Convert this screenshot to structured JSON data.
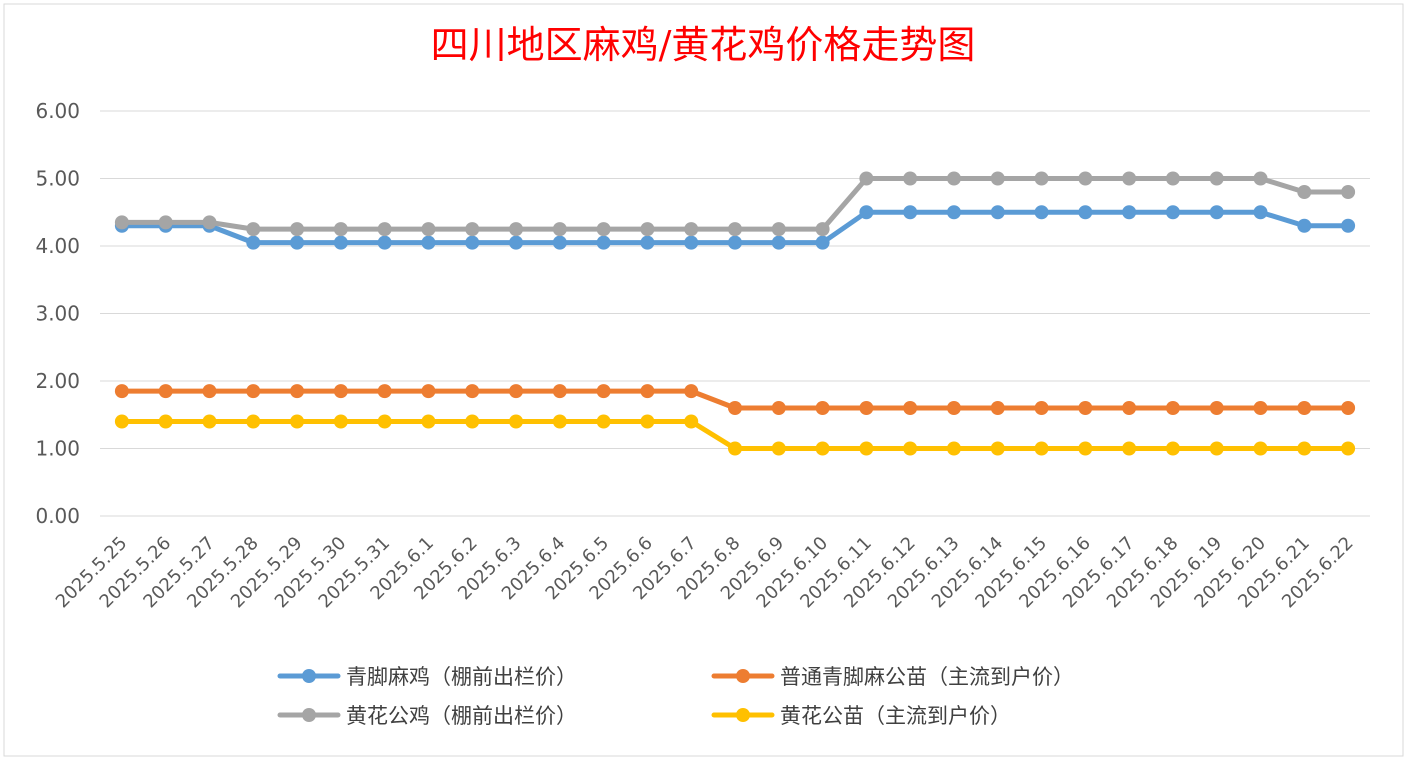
{
  "chart_data": {
    "type": "line",
    "title": "四川地区麻鸡/黄花鸡价格走势图",
    "xlabel": "",
    "ylabel": "",
    "ylim": [
      0,
      6
    ],
    "yticks": [
      "0.00",
      "1.00",
      "2.00",
      "3.00",
      "4.00",
      "5.00",
      "6.00"
    ],
    "grid": true,
    "legend_position": "bottom",
    "categories": [
      "2025.5.25",
      "2025.5.26",
      "2025.5.27",
      "2025.5.28",
      "2025.5.29",
      "2025.5.30",
      "2025.5.31",
      "2025.6.1",
      "2025.6.2",
      "2025.6.3",
      "2025.6.4",
      "2025.6.5",
      "2025.6.6",
      "2025.6.7",
      "2025.6.8",
      "2025.6.9",
      "2025.6.10",
      "2025.6.11",
      "2025.6.12",
      "2025.6.13",
      "2025.6.14",
      "2025.6.15",
      "2025.6.16",
      "2025.6.17",
      "2025.6.18",
      "2025.6.19",
      "2025.6.20",
      "2025.6.21",
      "2025.6.22"
    ],
    "series": [
      {
        "name": "青脚麻鸡（棚前出栏价）",
        "color": "#5b9bd5",
        "values": [
          4.3,
          4.3,
          4.3,
          4.05,
          4.05,
          4.05,
          4.05,
          4.05,
          4.05,
          4.05,
          4.05,
          4.05,
          4.05,
          4.05,
          4.05,
          4.05,
          4.05,
          4.5,
          4.5,
          4.5,
          4.5,
          4.5,
          4.5,
          4.5,
          4.5,
          4.5,
          4.5,
          4.3,
          4.3
        ]
      },
      {
        "name": "普通青脚麻公苗（主流到户价）",
        "color": "#ed7d31",
        "values": [
          1.85,
          1.85,
          1.85,
          1.85,
          1.85,
          1.85,
          1.85,
          1.85,
          1.85,
          1.85,
          1.85,
          1.85,
          1.85,
          1.85,
          1.6,
          1.6,
          1.6,
          1.6,
          1.6,
          1.6,
          1.6,
          1.6,
          1.6,
          1.6,
          1.6,
          1.6,
          1.6,
          1.6,
          1.6
        ]
      },
      {
        "name": "黄花公鸡（棚前出栏价）",
        "color": "#a5a5a5",
        "values": [
          4.35,
          4.35,
          4.35,
          4.25,
          4.25,
          4.25,
          4.25,
          4.25,
          4.25,
          4.25,
          4.25,
          4.25,
          4.25,
          4.25,
          4.25,
          4.25,
          4.25,
          5.0,
          5.0,
          5.0,
          5.0,
          5.0,
          5.0,
          5.0,
          5.0,
          5.0,
          5.0,
          4.8,
          4.8
        ]
      },
      {
        "name": "黄花公苗（主流到户价）",
        "color": "#ffc000",
        "values": [
          1.4,
          1.4,
          1.4,
          1.4,
          1.4,
          1.4,
          1.4,
          1.4,
          1.4,
          1.4,
          1.4,
          1.4,
          1.4,
          1.4,
          1.0,
          1.0,
          1.0,
          1.0,
          1.0,
          1.0,
          1.0,
          1.0,
          1.0,
          1.0,
          1.0,
          1.0,
          1.0,
          1.0,
          1.0
        ]
      }
    ]
  }
}
